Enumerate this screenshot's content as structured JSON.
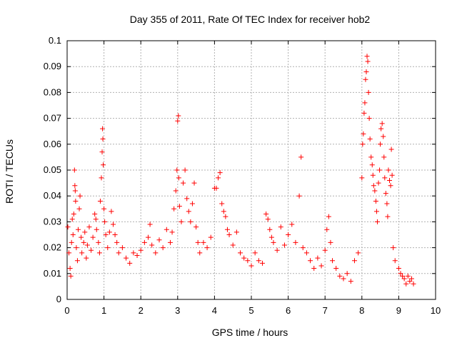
{
  "chart_data": {
    "type": "scatter",
    "title": "Day 355 of 2011, Rate Of TEC Index for receiver hob2",
    "xlabel": "GPS time / hours",
    "ylabel": "ROTI / TECUs",
    "xlim": [
      0,
      10
    ],
    "ylim": [
      0,
      0.1
    ],
    "xticks": [
      "0",
      "1",
      "2",
      "3",
      "4",
      "5",
      "6",
      "7",
      "8",
      "9",
      "10"
    ],
    "yticks": [
      "0",
      "0.01",
      "0.02",
      "0.03",
      "0.04",
      "0.05",
      "0.06",
      "0.07",
      "0.08",
      "0.09",
      "0.1"
    ],
    "grid": true,
    "marker": "+",
    "color": "#ff0000",
    "series": [
      {
        "name": "ROTI",
        "points": [
          [
            0.02,
            0.028
          ],
          [
            0.05,
            0.018
          ],
          [
            0.08,
            0.012
          ],
          [
            0.1,
            0.009
          ],
          [
            0.12,
            0.022
          ],
          [
            0.14,
            0.031
          ],
          [
            0.16,
            0.025
          ],
          [
            0.18,
            0.033
          ],
          [
            0.2,
            0.05
          ],
          [
            0.21,
            0.044
          ],
          [
            0.22,
            0.042
          ],
          [
            0.23,
            0.038
          ],
          [
            0.25,
            0.02
          ],
          [
            0.28,
            0.015
          ],
          [
            0.3,
            0.027
          ],
          [
            0.33,
            0.035
          ],
          [
            0.35,
            0.04
          ],
          [
            0.38,
            0.024
          ],
          [
            0.4,
            0.018
          ],
          [
            0.45,
            0.022
          ],
          [
            0.48,
            0.026
          ],
          [
            0.52,
            0.016
          ],
          [
            0.55,
            0.021
          ],
          [
            0.6,
            0.028
          ],
          [
            0.65,
            0.019
          ],
          [
            0.7,
            0.024
          ],
          [
            0.75,
            0.033
          ],
          [
            0.78,
            0.031
          ],
          [
            0.8,
            0.027
          ],
          [
            0.85,
            0.022
          ],
          [
            0.88,
            0.018
          ],
          [
            0.9,
            0.038
          ],
          [
            0.93,
            0.047
          ],
          [
            0.95,
            0.057
          ],
          [
            0.96,
            0.066
          ],
          [
            0.97,
            0.062
          ],
          [
            0.98,
            0.052
          ],
          [
            1.0,
            0.035
          ],
          [
            1.02,
            0.03
          ],
          [
            1.05,
            0.025
          ],
          [
            1.1,
            0.02
          ],
          [
            1.15,
            0.026
          ],
          [
            1.2,
            0.034
          ],
          [
            1.25,
            0.029
          ],
          [
            1.3,
            0.025
          ],
          [
            1.35,
            0.022
          ],
          [
            1.4,
            0.018
          ],
          [
            1.5,
            0.02
          ],
          [
            1.6,
            0.016
          ],
          [
            1.7,
            0.014
          ],
          [
            1.8,
            0.018
          ],
          [
            1.9,
            0.017
          ],
          [
            2.0,
            0.019
          ],
          [
            2.1,
            0.022
          ],
          [
            2.2,
            0.024
          ],
          [
            2.25,
            0.029
          ],
          [
            2.3,
            0.021
          ],
          [
            2.4,
            0.018
          ],
          [
            2.5,
            0.023
          ],
          [
            2.6,
            0.02
          ],
          [
            2.7,
            0.027
          ],
          [
            2.8,
            0.022
          ],
          [
            2.85,
            0.026
          ],
          [
            2.9,
            0.035
          ],
          [
            2.95,
            0.042
          ],
          [
            2.98,
            0.05
          ],
          [
            3.0,
            0.069
          ],
          [
            3.02,
            0.071
          ],
          [
            3.03,
            0.047
          ],
          [
            3.05,
            0.036
          ],
          [
            3.1,
            0.03
          ],
          [
            3.15,
            0.045
          ],
          [
            3.2,
            0.05
          ],
          [
            3.25,
            0.039
          ],
          [
            3.3,
            0.034
          ],
          [
            3.35,
            0.03
          ],
          [
            3.4,
            0.037
          ],
          [
            3.45,
            0.045
          ],
          [
            3.5,
            0.028
          ],
          [
            3.55,
            0.022
          ],
          [
            3.6,
            0.018
          ],
          [
            3.7,
            0.022
          ],
          [
            3.8,
            0.02
          ],
          [
            3.9,
            0.024
          ],
          [
            4.0,
            0.043
          ],
          [
            4.05,
            0.043
          ],
          [
            4.1,
            0.047
          ],
          [
            4.15,
            0.049
          ],
          [
            4.2,
            0.037
          ],
          [
            4.25,
            0.034
          ],
          [
            4.3,
            0.032
          ],
          [
            4.35,
            0.027
          ],
          [
            4.4,
            0.025
          ],
          [
            4.5,
            0.021
          ],
          [
            4.6,
            0.026
          ],
          [
            4.7,
            0.018
          ],
          [
            4.8,
            0.016
          ],
          [
            4.9,
            0.015
          ],
          [
            5.0,
            0.013
          ],
          [
            5.1,
            0.018
          ],
          [
            5.2,
            0.015
          ],
          [
            5.3,
            0.014
          ],
          [
            5.4,
            0.033
          ],
          [
            5.45,
            0.031
          ],
          [
            5.5,
            0.027
          ],
          [
            5.55,
            0.024
          ],
          [
            5.6,
            0.022
          ],
          [
            5.7,
            0.019
          ],
          [
            5.8,
            0.028
          ],
          [
            5.9,
            0.021
          ],
          [
            6.0,
            0.025
          ],
          [
            6.1,
            0.029
          ],
          [
            6.2,
            0.022
          ],
          [
            6.3,
            0.04
          ],
          [
            6.35,
            0.055
          ],
          [
            6.4,
            0.02
          ],
          [
            6.5,
            0.018
          ],
          [
            6.6,
            0.015
          ],
          [
            6.7,
            0.012
          ],
          [
            6.8,
            0.016
          ],
          [
            6.9,
            0.013
          ],
          [
            7.0,
            0.019
          ],
          [
            7.05,
            0.027
          ],
          [
            7.1,
            0.032
          ],
          [
            7.15,
            0.022
          ],
          [
            7.2,
            0.015
          ],
          [
            7.3,
            0.012
          ],
          [
            7.4,
            0.009
          ],
          [
            7.5,
            0.008
          ],
          [
            7.6,
            0.01
          ],
          [
            7.7,
            0.007
          ],
          [
            7.8,
            0.015
          ],
          [
            7.9,
            0.018
          ],
          [
            8.0,
            0.047
          ],
          [
            8.02,
            0.06
          ],
          [
            8.04,
            0.064
          ],
          [
            8.06,
            0.072
          ],
          [
            8.08,
            0.076
          ],
          [
            8.1,
            0.085
          ],
          [
            8.12,
            0.088
          ],
          [
            8.14,
            0.094
          ],
          [
            8.16,
            0.092
          ],
          [
            8.18,
            0.08
          ],
          [
            8.2,
            0.07
          ],
          [
            8.22,
            0.062
          ],
          [
            8.25,
            0.055
          ],
          [
            8.28,
            0.052
          ],
          [
            8.3,
            0.048
          ],
          [
            8.32,
            0.044
          ],
          [
            8.35,
            0.042
          ],
          [
            8.38,
            0.038
          ],
          [
            8.4,
            0.034
          ],
          [
            8.42,
            0.03
          ],
          [
            8.45,
            0.045
          ],
          [
            8.48,
            0.05
          ],
          [
            8.5,
            0.06
          ],
          [
            8.52,
            0.066
          ],
          [
            8.55,
            0.068
          ],
          [
            8.58,
            0.063
          ],
          [
            8.6,
            0.055
          ],
          [
            8.62,
            0.047
          ],
          [
            8.65,
            0.041
          ],
          [
            8.68,
            0.037
          ],
          [
            8.7,
            0.032
          ],
          [
            8.72,
            0.05
          ],
          [
            8.75,
            0.046
          ],
          [
            8.78,
            0.044
          ],
          [
            8.8,
            0.058
          ],
          [
            8.82,
            0.048
          ],
          [
            8.85,
            0.02
          ],
          [
            8.9,
            0.015
          ],
          [
            9.0,
            0.012
          ],
          [
            9.05,
            0.01
          ],
          [
            9.1,
            0.009
          ],
          [
            9.15,
            0.008
          ],
          [
            9.2,
            0.006
          ],
          [
            9.25,
            0.009
          ],
          [
            9.3,
            0.007
          ],
          [
            9.35,
            0.008
          ],
          [
            9.4,
            0.006
          ]
        ]
      }
    ]
  }
}
